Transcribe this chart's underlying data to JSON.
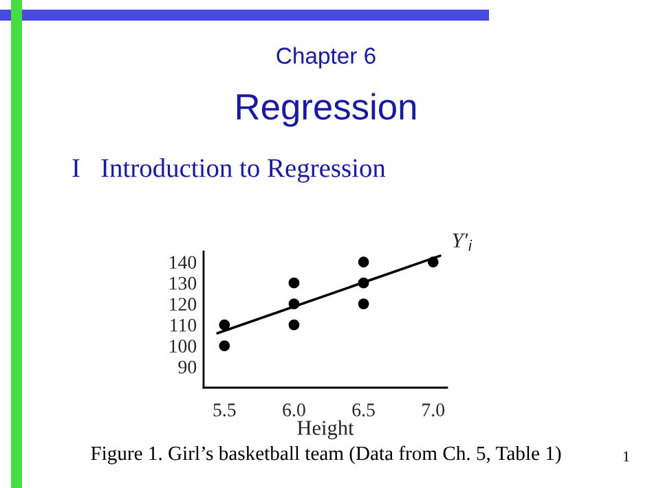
{
  "chart_data": {
    "type": "scatter",
    "title": "Chapter 6",
    "subtitle": "Regression",
    "xlabel": "Height",
    "annotations": [
      "I   Introduction to Regression",
      "Figure 1. Girl’s basketball team (Data from Ch. 5, Table 1)",
      "1"
    ],
    "x": [
      5.5,
      5.5,
      6.0,
      6.0,
      6.0,
      6.5,
      6.5,
      6.5,
      7.0
    ],
    "series": [
      {
        "color": "#000000",
        "values": [
          110,
          100,
          130,
          120,
          110,
          140,
          130,
          120,
          140
        ]
      },
      {
        "type": "line",
        "marker": "none",
        "name": "Y′$_{i}$",
        "color": "#000000",
        "x": [
          5.45,
          7.05
        ],
        "values": [
          106,
          143
        ]
      }
    ],
    "xlim": [
      5.35,
      7.1
    ],
    "xticks": [
      5.5,
      {
        "value": 6.0,
        "label": "6.0"
      },
      6.5,
      {
        "value": 7.0,
        "label": "7.0"
      }
    ],
    "ylim": [
      80,
      145
    ],
    "yticks": [
      90,
      100,
      110,
      120,
      130,
      140
    ],
    "marker": "circle",
    "grid": false,
    "legend": false
  }
}
